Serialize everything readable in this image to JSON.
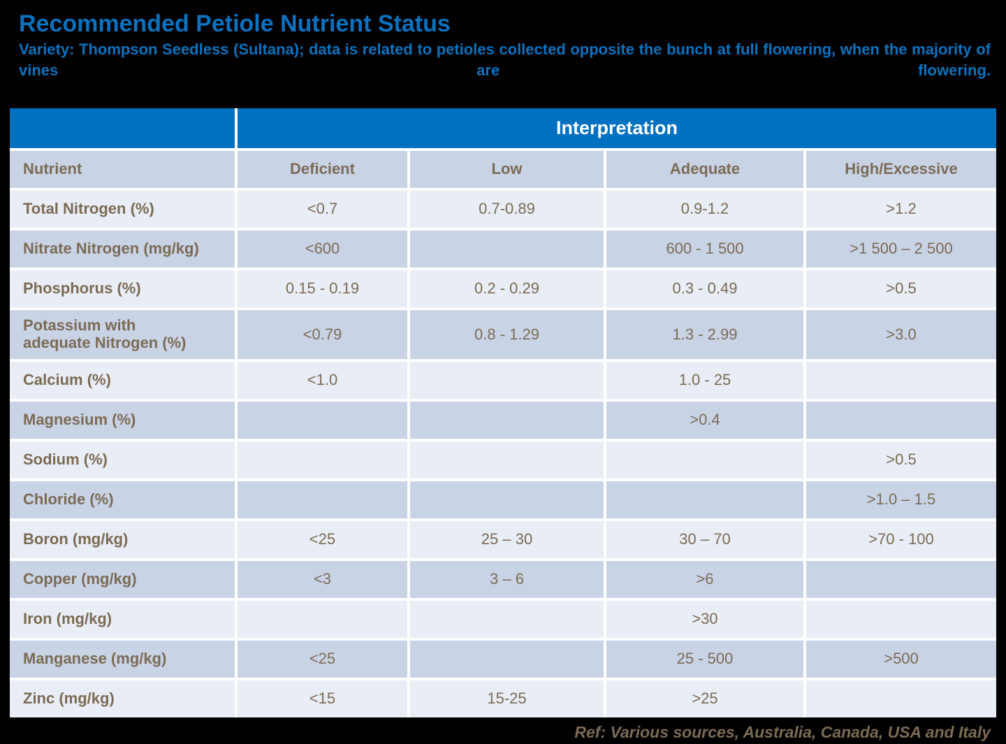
{
  "header": {
    "title": "Recommended Petiole Nutrient Status",
    "subtitle": "Variety: Thompson Seedless (Sultana); data is related to petioles collected opposite the bunch at full flowering, when the majority of vines are flowering."
  },
  "chart_data": {
    "type": "table",
    "title": "Recommended Petiole Nutrient Status",
    "group_header": "Interpretation",
    "columns": [
      "Nutrient",
      "Deficient",
      "Low",
      "Adequate",
      "High/Excessive"
    ],
    "rows": [
      [
        "Total Nitrogen (%)",
        "<0.7",
        "0.7-0.89",
        "0.9-1.2",
        ">1.2"
      ],
      [
        "Nitrate Nitrogen (mg/kg)",
        "<600",
        "",
        "600 - 1 500",
        ">1 500 – 2 500"
      ],
      [
        "Phosphorus (%)",
        "0.15 - 0.19",
        "0.2 - 0.29",
        "0.3 - 0.49",
        ">0.5"
      ],
      [
        "Potassium with\nadequate Nitrogen (%)",
        "<0.79",
        "0.8 - 1.29",
        "1.3 - 2.99",
        ">3.0"
      ],
      [
        "Calcium (%)",
        "<1.0",
        "",
        "1.0 - 25",
        ""
      ],
      [
        "Magnesium (%)",
        "",
        "",
        ">0.4",
        ""
      ],
      [
        "Sodium (%)",
        "",
        "",
        "",
        ">0.5"
      ],
      [
        "Chloride (%)",
        "",
        "",
        "",
        ">1.0 – 1.5"
      ],
      [
        "Boron (mg/kg)",
        "<25",
        "25 – 30",
        "30 – 70",
        ">70 - 100"
      ],
      [
        "Copper (mg/kg)",
        "<3",
        "3 – 6",
        ">6",
        ""
      ],
      [
        "Iron (mg/kg)",
        "",
        "",
        ">30",
        ""
      ],
      [
        "Manganese (mg/kg)",
        "<25",
        "",
        "25 - 500",
        ">500"
      ],
      [
        "Zinc (mg/kg)",
        "<15",
        "15-25",
        ">25",
        ""
      ]
    ],
    "layout": {
      "legend_position": "none",
      "grid": "white-gutters",
      "row_striping": "alternating"
    }
  },
  "footer": {
    "reference": "Ref: Various sources, Australia, Canada, USA and Italy"
  },
  "colors": {
    "accent_blue": "#0070C0",
    "title_blue": "#0a72bf",
    "row_light": "#e9edf5",
    "row_dark": "#c9d3e6",
    "text_brown": "#7b6b54",
    "group_header_text": "#ffffff",
    "page_background": "#000000",
    "cell_gutter": "#ffffff"
  }
}
